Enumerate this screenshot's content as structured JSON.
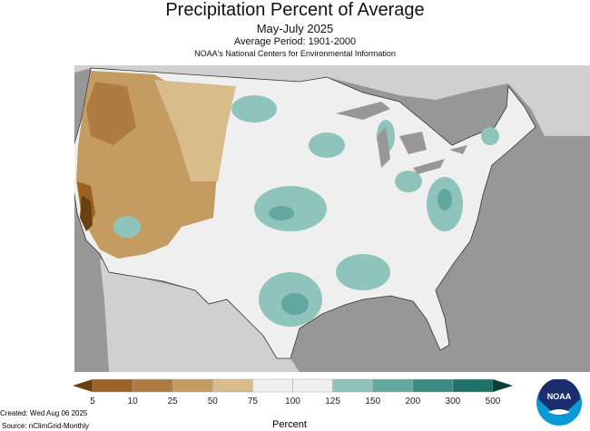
{
  "title": "Precipitation Percent of Average",
  "subtitle": "May-July 2025",
  "period": "Average Period: 1901-2000",
  "organization": "NOAA's National Centers for Environmental Information",
  "legend": {
    "ticks": [
      "5",
      "10",
      "25",
      "50",
      "75",
      "100",
      "125",
      "150",
      "200",
      "300",
      "500"
    ],
    "colors": [
      "#9c6224",
      "#ae7c40",
      "#c49c62",
      "#d8bc8c",
      "#efefef",
      "#efefef",
      "#8ec4bb",
      "#62a89e",
      "#3a8c80",
      "#1e7266"
    ],
    "below_color": "#6b4010",
    "above_color": "#0a3f36",
    "unit_label": "Percent"
  },
  "created": "Created: Wed Aug 06 2025",
  "source": "Source: nClimGrid-Monthly",
  "logo_text": "NOAA"
}
